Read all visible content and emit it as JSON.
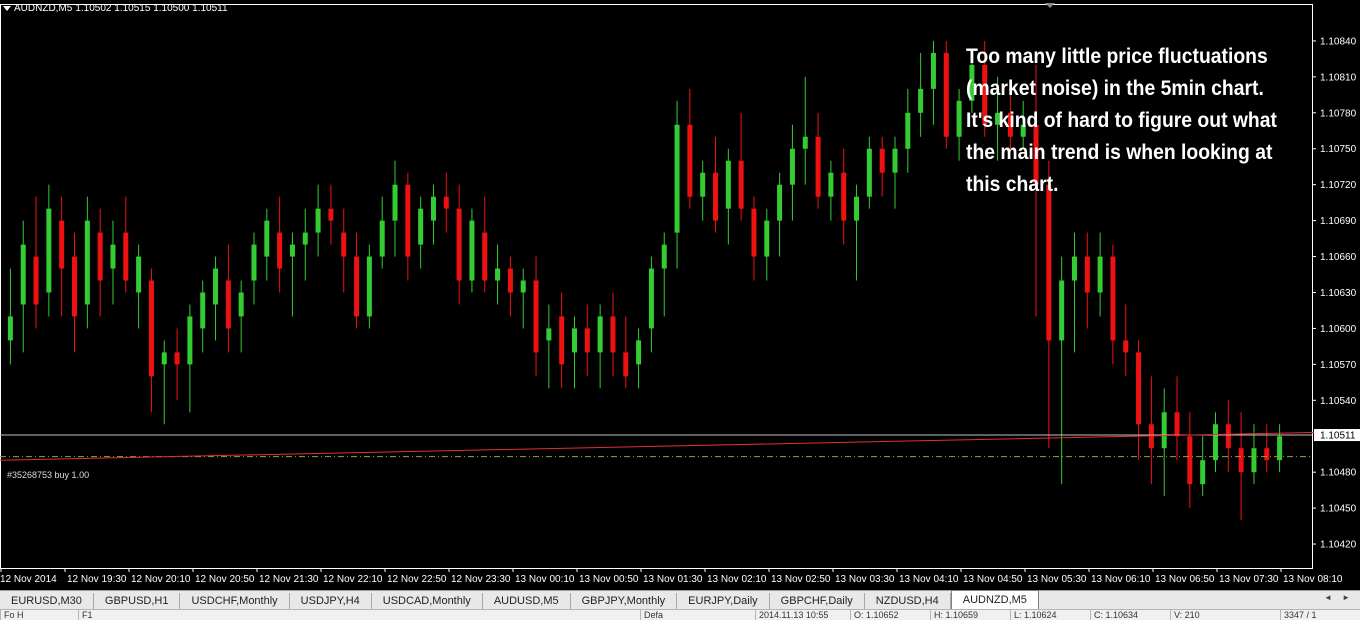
{
  "header": {
    "symbol": "AUDNZD,M5",
    "prices": "1.10502 1.10515 1.10500 1.10511"
  },
  "annotation": "Too many little price fluctuations (market noise) in the 5min chart. It's kind of hard to figure out what the main trend is when looking at this chart.",
  "order_label": "#35268753 buy 1.00",
  "current_price": "1.10511",
  "price_axis": [
    "1.10840",
    "1.10810",
    "1.10780",
    "1.10750",
    "1.10720",
    "1.10690",
    "1.10660",
    "1.10630",
    "1.10600",
    "1.10570",
    "1.10540",
    "1.10480",
    "1.10450",
    "1.10420"
  ],
  "time_axis": [
    "12 Nov 2014",
    "12 Nov 19:30",
    "12 Nov 20:10",
    "12 Nov 20:50",
    "12 Nov 21:30",
    "12 Nov 22:10",
    "12 Nov 22:50",
    "12 Nov 23:30",
    "13 Nov 00:10",
    "13 Nov 00:50",
    "13 Nov 01:30",
    "13 Nov 02:10",
    "13 Nov 02:50",
    "13 Nov 03:30",
    "13 Nov 04:10",
    "13 Nov 04:50",
    "13 Nov 05:30",
    "13 Nov 06:10",
    "13 Nov 06:50",
    "13 Nov 07:30",
    "13 Nov 08:10"
  ],
  "tabs": [
    "EURUSD,M30",
    "GBPUSD,H1",
    "USDCHF,Monthly",
    "USDJPY,H4",
    "USDCAD,Monthly",
    "AUDUSD,M5",
    "GBPJPY,Monthly",
    "EURJPY,Daily",
    "GBPCHF,Daily",
    "NZDUSD,H4",
    "AUDNZD,M5"
  ],
  "active_tab": "AUDNZD,M5",
  "status": [
    "Fo H",
    "F1",
    "Defa",
    "2014.11.13 10:55",
    "O: 1.10652",
    "H: 1.10659",
    "L: 1.10624",
    "C: 1.10634",
    "V: 210",
    "3347 / 1"
  ],
  "colors": {
    "background": "#000000",
    "bull": "#33cc33",
    "bear": "#ee1111",
    "trendline": "#e03030",
    "entry_line": "#88aa33",
    "bid_line": "#c0c0c0",
    "axis": "#ffffff"
  },
  "chart_data": {
    "type": "candlestick",
    "xlabel": "",
    "ylabel": "",
    "ylim": [
      1.104,
      1.1087
    ],
    "grid": false,
    "current_price": 1.10511,
    "order_price": 1.10493,
    "trend_line": [
      [
        0,
        1.1049
      ],
      [
        200,
        1.10514
      ]
    ],
    "ohlc": [
      [
        1.1059,
        1.1065,
        1.1057,
        1.1061
      ],
      [
        1.1062,
        1.1069,
        1.1058,
        1.1067
      ],
      [
        1.1066,
        1.1071,
        1.106,
        1.1062
      ],
      [
        1.1063,
        1.1072,
        1.1061,
        1.107
      ],
      [
        1.1069,
        1.1071,
        1.1061,
        1.1065
      ],
      [
        1.1066,
        1.1068,
        1.1058,
        1.1061
      ],
      [
        1.1062,
        1.1071,
        1.106,
        1.1069
      ],
      [
        1.1068,
        1.107,
        1.1061,
        1.1064
      ],
      [
        1.1065,
        1.1069,
        1.1062,
        1.1067
      ],
      [
        1.1068,
        1.1071,
        1.1063,
        1.1064
      ],
      [
        1.1063,
        1.1067,
        1.106,
        1.1066
      ],
      [
        1.1064,
        1.1065,
        1.1053,
        1.1056
      ],
      [
        1.1057,
        1.1059,
        1.1052,
        1.1058
      ],
      [
        1.1058,
        1.106,
        1.1054,
        1.1057
      ],
      [
        1.1057,
        1.1062,
        1.1053,
        1.1061
      ],
      [
        1.106,
        1.1064,
        1.1058,
        1.1063
      ],
      [
        1.1062,
        1.1066,
        1.1059,
        1.1065
      ],
      [
        1.1064,
        1.1067,
        1.1058,
        1.106
      ],
      [
        1.1061,
        1.1064,
        1.1058,
        1.1063
      ],
      [
        1.1064,
        1.1068,
        1.1062,
        1.1067
      ],
      [
        1.1066,
        1.107,
        1.1064,
        1.1069
      ],
      [
        1.1068,
        1.1071,
        1.1063,
        1.1065
      ],
      [
        1.1066,
        1.1068,
        1.1061,
        1.1067
      ],
      [
        1.1067,
        1.107,
        1.1064,
        1.1068
      ],
      [
        1.1068,
        1.1072,
        1.1066,
        1.107
      ],
      [
        1.107,
        1.1072,
        1.1067,
        1.1069
      ],
      [
        1.1068,
        1.107,
        1.1063,
        1.1066
      ],
      [
        1.1066,
        1.1068,
        1.106,
        1.1061
      ],
      [
        1.1061,
        1.1067,
        1.106,
        1.1066
      ],
      [
        1.1066,
        1.1071,
        1.1065,
        1.1069
      ],
      [
        1.1069,
        1.1074,
        1.1066,
        1.1072
      ],
      [
        1.1072,
        1.1073,
        1.1064,
        1.1066
      ],
      [
        1.1067,
        1.1071,
        1.1065,
        1.107
      ],
      [
        1.1069,
        1.1072,
        1.1067,
        1.1071
      ],
      [
        1.1071,
        1.1073,
        1.1068,
        1.107
      ],
      [
        1.107,
        1.1072,
        1.1062,
        1.1064
      ],
      [
        1.1064,
        1.107,
        1.1063,
        1.1069
      ],
      [
        1.1068,
        1.1071,
        1.1063,
        1.1064
      ],
      [
        1.1064,
        1.1067,
        1.1062,
        1.1065
      ],
      [
        1.1065,
        1.1066,
        1.1061,
        1.1063
      ],
      [
        1.1063,
        1.1065,
        1.106,
        1.1064
      ],
      [
        1.1064,
        1.1066,
        1.1056,
        1.1058
      ],
      [
        1.1059,
        1.1062,
        1.1055,
        1.106
      ],
      [
        1.1061,
        1.1063,
        1.1055,
        1.1057
      ],
      [
        1.1058,
        1.1061,
        1.1055,
        1.106
      ],
      [
        1.106,
        1.1062,
        1.1056,
        1.1058
      ],
      [
        1.1058,
        1.1062,
        1.1055,
        1.1061
      ],
      [
        1.1061,
        1.1063,
        1.1056,
        1.1058
      ],
      [
        1.1058,
        1.1061,
        1.1055,
        1.1056
      ],
      [
        1.1057,
        1.106,
        1.1055,
        1.1059
      ],
      [
        1.106,
        1.1066,
        1.1058,
        1.1065
      ],
      [
        1.1065,
        1.1068,
        1.1061,
        1.1067
      ],
      [
        1.1068,
        1.1079,
        1.1065,
        1.1077
      ],
      [
        1.1077,
        1.108,
        1.107,
        1.1071
      ],
      [
        1.1071,
        1.1074,
        1.1069,
        1.1073
      ],
      [
        1.1073,
        1.1076,
        1.1068,
        1.1069
      ],
      [
        1.107,
        1.1075,
        1.1067,
        1.1074
      ],
      [
        1.1074,
        1.1078,
        1.1069,
        1.107
      ],
      [
        1.107,
        1.1071,
        1.1064,
        1.1066
      ],
      [
        1.1066,
        1.107,
        1.1064,
        1.1069
      ],
      [
        1.1069,
        1.1073,
        1.1066,
        1.1072
      ],
      [
        1.1072,
        1.1077,
        1.1069,
        1.1075
      ],
      [
        1.1075,
        1.1081,
        1.1072,
        1.1076
      ],
      [
        1.1076,
        1.1078,
        1.107,
        1.1071
      ],
      [
        1.1071,
        1.1074,
        1.1069,
        1.1073
      ],
      [
        1.1073,
        1.1075,
        1.1067,
        1.1069
      ],
      [
        1.1069,
        1.1072,
        1.1064,
        1.1071
      ],
      [
        1.1071,
        1.1076,
        1.107,
        1.1075
      ],
      [
        1.1075,
        1.1076,
        1.1071,
        1.1073
      ],
      [
        1.1073,
        1.1076,
        1.107,
        1.1075
      ],
      [
        1.1075,
        1.108,
        1.1073,
        1.1078
      ],
      [
        1.1078,
        1.1083,
        1.1076,
        1.108
      ],
      [
        1.108,
        1.1084,
        1.1077,
        1.1083
      ],
      [
        1.1083,
        1.1084,
        1.1075,
        1.1076
      ],
      [
        1.1076,
        1.108,
        1.1074,
        1.1079
      ],
      [
        1.1079,
        1.1083,
        1.1078,
        1.1082
      ],
      [
        1.1082,
        1.1084,
        1.1076,
        1.1077
      ],
      [
        1.1077,
        1.1081,
        1.1074,
        1.1078
      ],
      [
        1.1078,
        1.108,
        1.1075,
        1.1076
      ],
      [
        1.1076,
        1.1079,
        1.1075,
        1.1077
      ],
      [
        1.1077,
        1.1082,
        1.1061,
        1.1072
      ],
      [
        1.1072,
        1.1074,
        1.105,
        1.1059
      ],
      [
        1.1059,
        1.1066,
        1.1047,
        1.1064
      ],
      [
        1.1064,
        1.1068,
        1.1058,
        1.1066
      ],
      [
        1.1066,
        1.1068,
        1.106,
        1.1063
      ],
      [
        1.1063,
        1.1068,
        1.1061,
        1.1066
      ],
      [
        1.1066,
        1.1067,
        1.1057,
        1.1059
      ],
      [
        1.1059,
        1.1062,
        1.1056,
        1.1058
      ],
      [
        1.1058,
        1.1059,
        1.1049,
        1.1052
      ],
      [
        1.1052,
        1.1056,
        1.1047,
        1.105
      ],
      [
        1.105,
        1.1055,
        1.1046,
        1.1053
      ],
      [
        1.1053,
        1.1056,
        1.1049,
        1.1051
      ],
      [
        1.1051,
        1.1053,
        1.1045,
        1.1047
      ],
      [
        1.1047,
        1.1051,
        1.1046,
        1.1049
      ],
      [
        1.1049,
        1.1053,
        1.1048,
        1.1052
      ],
      [
        1.1052,
        1.1054,
        1.1048,
        1.105
      ],
      [
        1.105,
        1.1053,
        1.1044,
        1.1048
      ],
      [
        1.1048,
        1.1052,
        1.1047,
        1.105
      ],
      [
        1.105,
        1.1052,
        1.1048,
        1.1049
      ],
      [
        1.1049,
        1.1052,
        1.1048,
        1.1051
      ]
    ]
  }
}
